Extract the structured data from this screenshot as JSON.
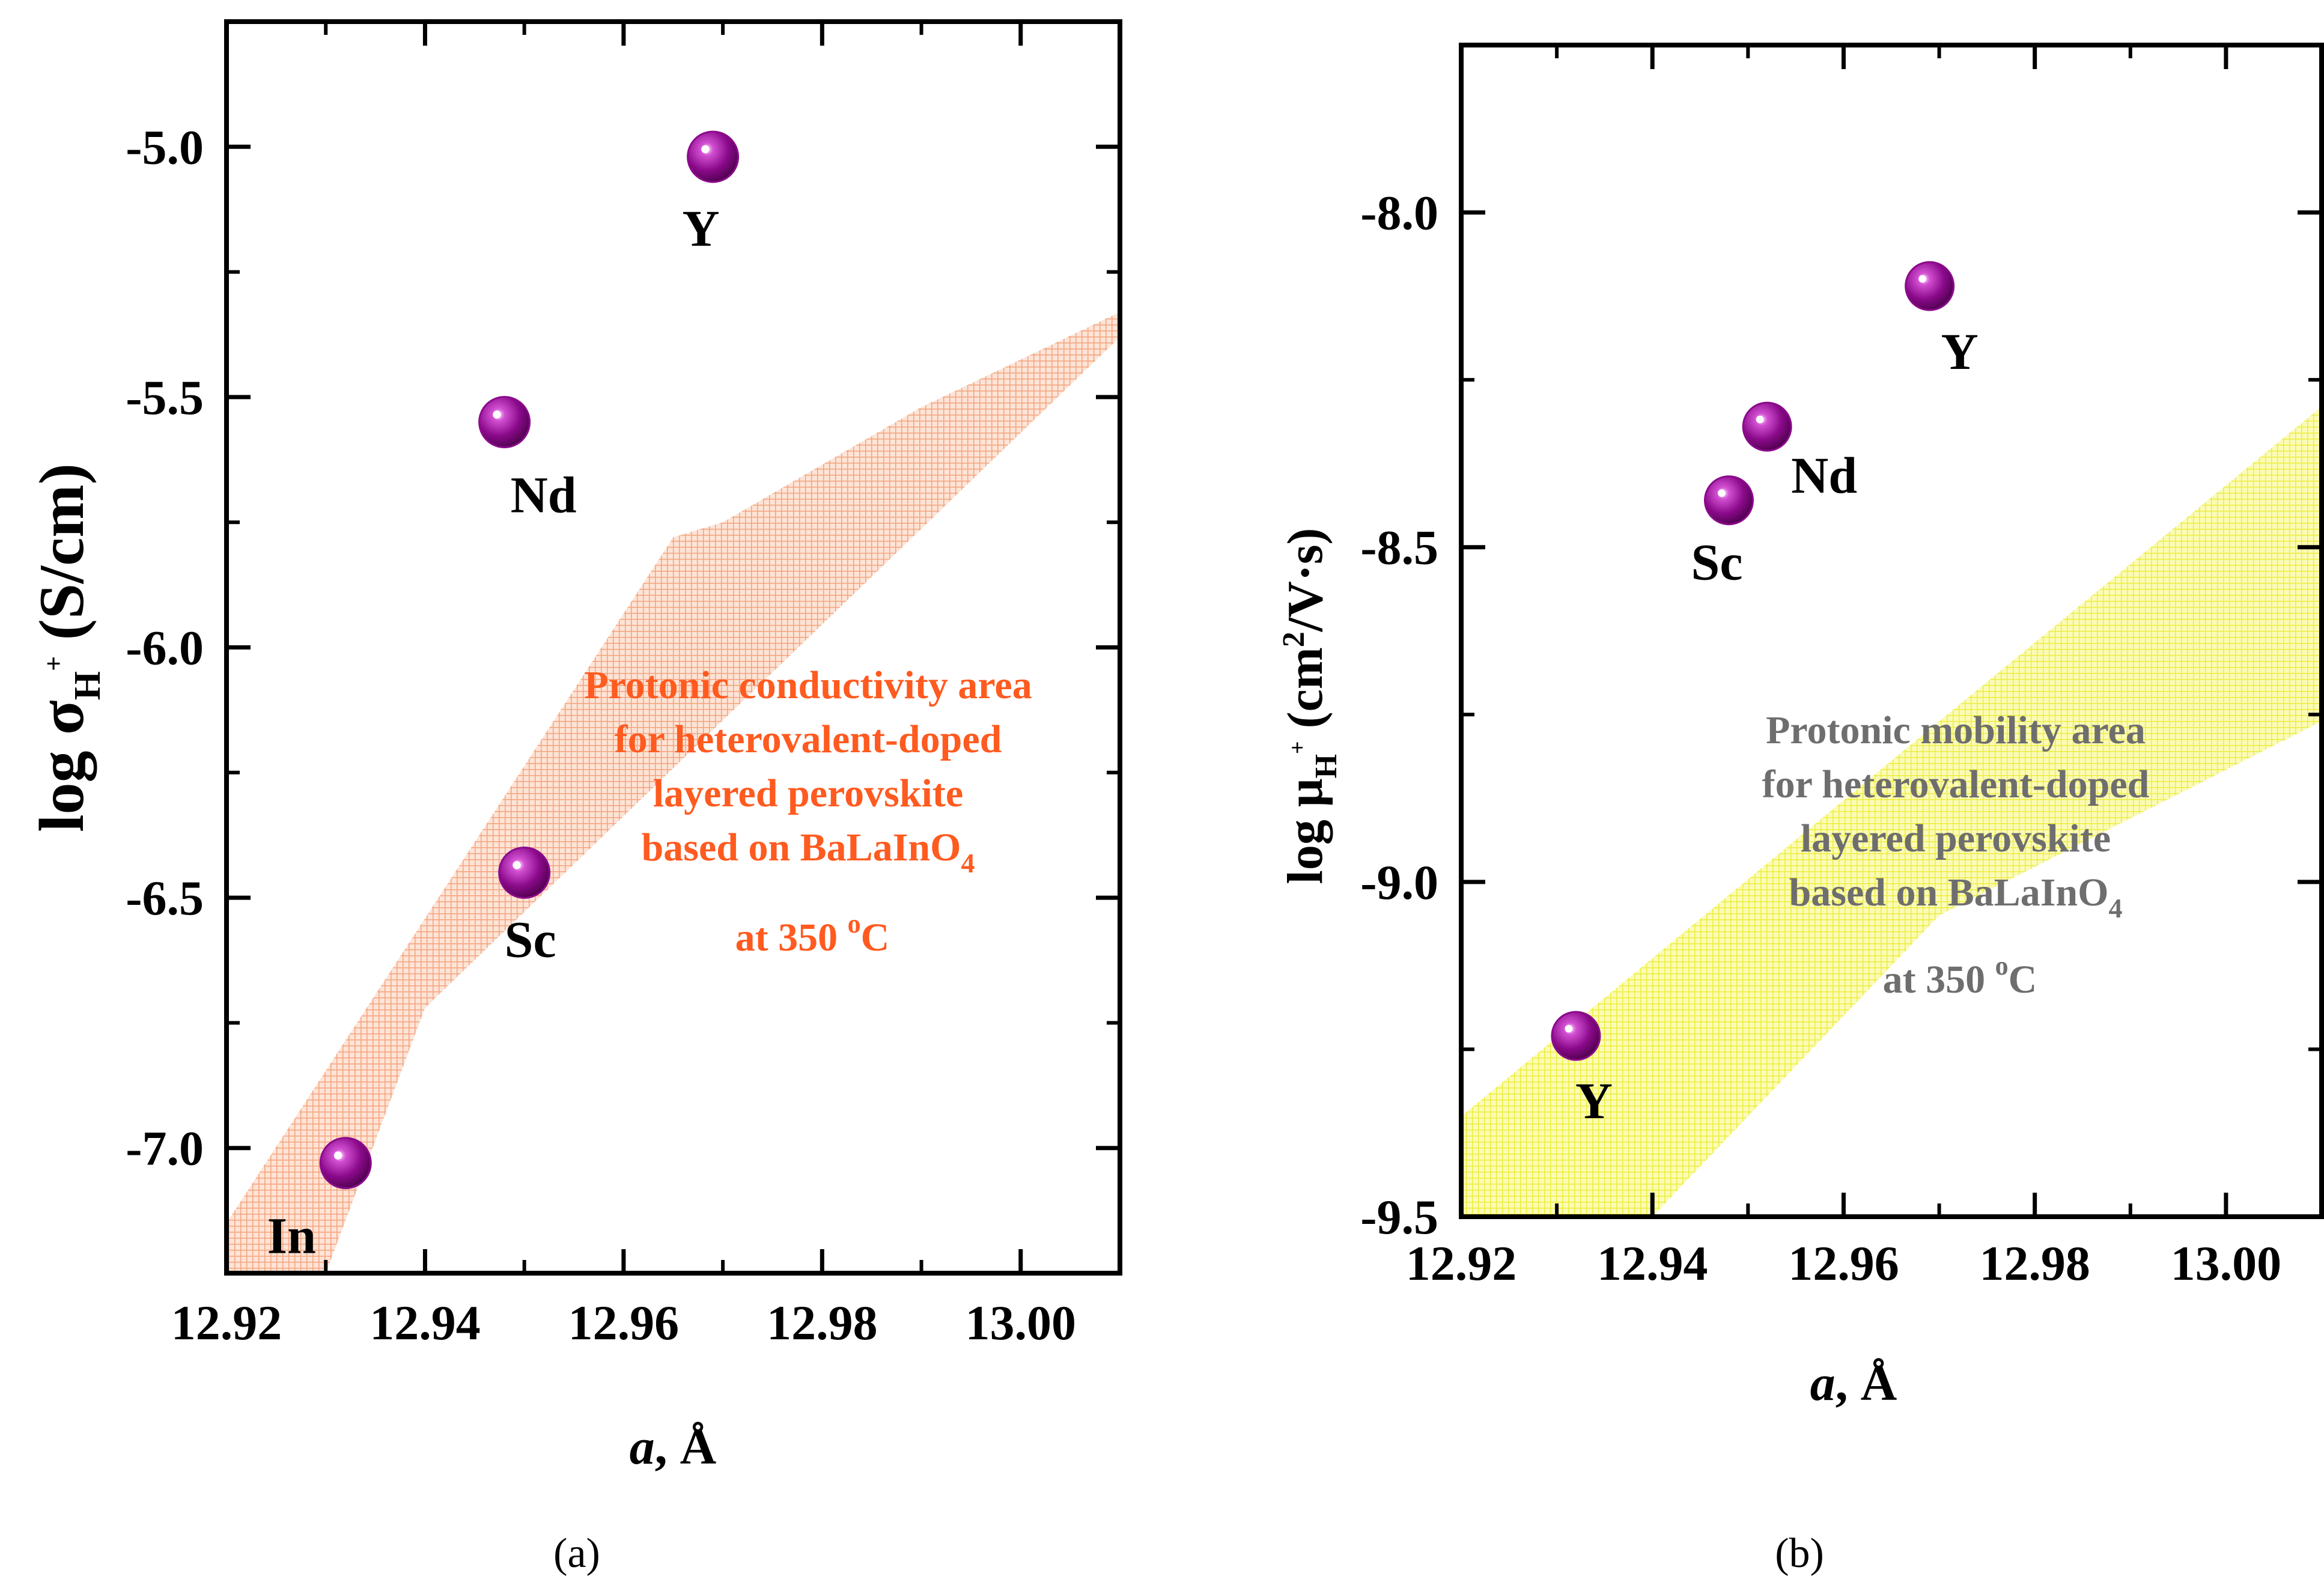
{
  "chart_data": [
    {
      "type": "scatter",
      "panel_label": "(a)",
      "xlabel_italic": "a",
      "xlabel_rest": ", Å",
      "ylabel_main": "log σ",
      "ylabel_sub": "H",
      "ylabel_sup": "+",
      "ylabel_unit": " (S/cm)",
      "xlim": [
        12.92,
        13.01
      ],
      "ylim": [
        -7.25,
        -4.75
      ],
      "x_ticks": [
        12.92,
        12.94,
        12.96,
        12.98,
        13.0
      ],
      "x_tick_labels": [
        "12.92",
        "12.94",
        "12.96",
        "12.98",
        "13.00"
      ],
      "y_ticks": [
        -5.0,
        -5.5,
        -6.0,
        -6.5,
        -7.0
      ],
      "y_tick_labels": [
        "-5.0",
        "-5.5",
        "-6.0",
        "-6.5",
        "-7.0"
      ],
      "points": [
        {
          "label": "Y",
          "x": 12.969,
          "y": -5.02
        },
        {
          "label": "Nd",
          "x": 12.948,
          "y": -5.55
        },
        {
          "label": "Sc",
          "x": 12.95,
          "y": -6.45
        },
        {
          "label": "In",
          "x": 12.932,
          "y": -7.03
        }
      ],
      "area_polygon": [
        [
          12.92,
          -7.25
        ],
        [
          12.92,
          -7.15
        ],
        [
          12.965,
          -5.78
        ],
        [
          12.97,
          -5.75
        ],
        [
          12.99,
          -5.52
        ],
        [
          13.01,
          -5.33
        ],
        [
          13.01,
          -5.38
        ],
        [
          12.94,
          -6.72
        ],
        [
          12.93,
          -7.25
        ]
      ],
      "area_color": "#f7a882",
      "annotation_lines": [
        "Protonic conductivity area",
        "for heterovalent-doped",
        "layered perovskite",
        "based on BaLaInO"
      ],
      "annotation_sub": "4",
      "annotation_temp": "at 350 ",
      "annotation_deg": "o",
      "annotation_unit": "C",
      "point_color": "#8b0a8b"
    },
    {
      "type": "scatter",
      "panel_label": "(b)",
      "xlabel_italic": "a",
      "xlabel_rest": ", Å",
      "ylabel_main": "log μ",
      "ylabel_sub": "H",
      "ylabel_sup": "+",
      "ylabel_unit_pre": " (cm",
      "ylabel_unit_sup": "2",
      "ylabel_unit_post": "/V·s)",
      "xlim": [
        12.92,
        13.01
      ],
      "ylim": [
        -9.5,
        -7.75
      ],
      "x_ticks": [
        12.92,
        12.94,
        12.96,
        12.98,
        13.0
      ],
      "x_tick_labels": [
        "12.92",
        "12.94",
        "12.96",
        "12.98",
        "13.00"
      ],
      "y_ticks": [
        -8.0,
        -8.5,
        -9.0,
        -9.5
      ],
      "y_tick_labels": [
        "-8.0",
        "-8.5",
        "-9.0",
        "-9.5"
      ],
      "points": [
        {
          "label": "Y",
          "x": 12.969,
          "y": -8.11
        },
        {
          "label": "Nd",
          "x": 12.952,
          "y": -8.32
        },
        {
          "label": "Sc",
          "x": 12.948,
          "y": -8.43
        },
        {
          "label": "Y",
          "x": 12.932,
          "y": -9.23
        }
      ],
      "area_polygon": [
        [
          12.92,
          -9.35
        ],
        [
          12.97,
          -8.76
        ],
        [
          13.01,
          -8.29
        ],
        [
          13.01,
          -8.76
        ],
        [
          12.97,
          -9.05
        ],
        [
          12.94,
          -9.5
        ],
        [
          12.92,
          -9.5
        ]
      ],
      "area_color": "#f2f25a",
      "annotation_lines": [
        "Protonic mobility area",
        "for heterovalent-doped",
        "layered perovskite",
        "based on BaLaInO"
      ],
      "annotation_sub": "4",
      "annotation_temp": "at 350 ",
      "annotation_deg": "o",
      "annotation_unit": "C",
      "point_color": "#8b0a8b"
    }
  ]
}
